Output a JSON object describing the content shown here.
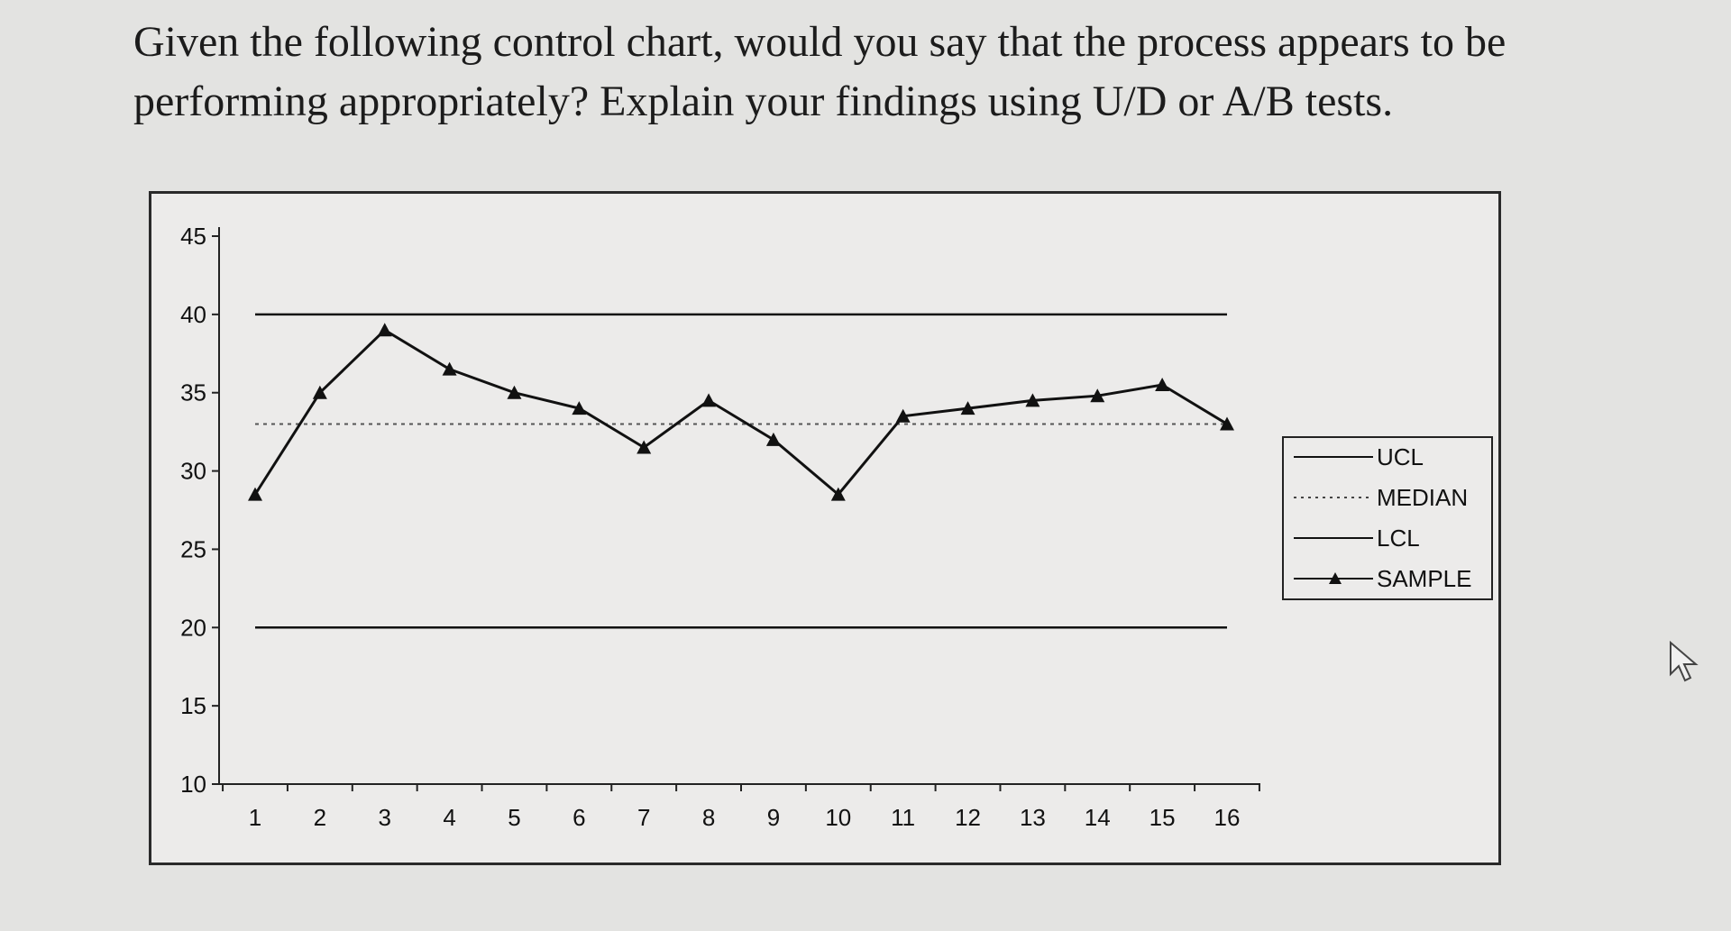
{
  "question": {
    "text": "Given the following control chart, would you say that the process appears to be performing appropriately? Explain your findings using U/D or A/B tests."
  },
  "chart_data": {
    "type": "line",
    "title": "",
    "xlabel": "",
    "ylabel": "",
    "x": [
      1,
      2,
      3,
      4,
      5,
      6,
      7,
      8,
      9,
      10,
      11,
      12,
      13,
      14,
      15,
      16
    ],
    "x_tick_labels": [
      "1",
      "2",
      "3",
      "4",
      "5",
      "6",
      "7",
      "8",
      "9",
      "10",
      "11",
      "12",
      "13",
      "14",
      "15",
      "16"
    ],
    "y_tick_labels": [
      "10",
      "15",
      "20",
      "25",
      "30",
      "35",
      "40",
      "45"
    ],
    "ylim": [
      10,
      45
    ],
    "grid": false,
    "legend_position": "right",
    "series": [
      {
        "name": "UCL",
        "style": "solid",
        "values": [
          40,
          40,
          40,
          40,
          40,
          40,
          40,
          40,
          40,
          40,
          40,
          40,
          40,
          40,
          40,
          40
        ]
      },
      {
        "name": "MEDIAN",
        "style": "dotted",
        "values": [
          33,
          33,
          33,
          33,
          33,
          33,
          33,
          33,
          33,
          33,
          33,
          33,
          33,
          33,
          33,
          33
        ]
      },
      {
        "name": "LCL",
        "style": "solid",
        "values": [
          20,
          20,
          20,
          20,
          20,
          20,
          20,
          20,
          20,
          20,
          20,
          20,
          20,
          20,
          20,
          20
        ]
      },
      {
        "name": "SAMPLE",
        "style": "solid-triangle-markers",
        "values": [
          28.5,
          35,
          39,
          36.5,
          35,
          34,
          31.5,
          34.5,
          32,
          28.5,
          33.5,
          34,
          34.5,
          34.8,
          35.5,
          33
        ]
      }
    ]
  }
}
